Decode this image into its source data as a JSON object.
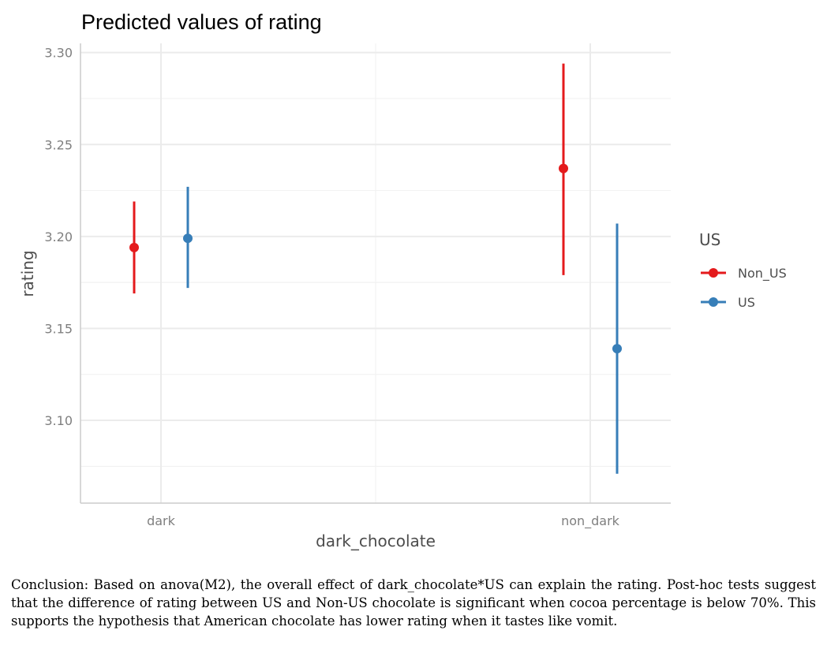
{
  "chart_data": {
    "type": "scatter",
    "title": "Predicted values of rating",
    "xlabel": "dark_chocolate",
    "ylabel": "rating",
    "categories": [
      "dark",
      "non_dark"
    ],
    "ylim": [
      3.055,
      3.305
    ],
    "y_ticks": [
      3.1,
      3.15,
      3.2,
      3.25,
      3.3
    ],
    "y_tick_labels": [
      "3.10",
      "3.15",
      "3.20",
      "3.25",
      "3.30"
    ],
    "grid": true,
    "legend_title": "US",
    "legend_position": "right",
    "series": [
      {
        "name": "Non_US",
        "color": "#e41a1c",
        "values": [
          3.194,
          3.237
        ],
        "ci_low": [
          3.169,
          3.179
        ],
        "ci_high": [
          3.219,
          3.294
        ]
      },
      {
        "name": "US",
        "color": "#377eb8",
        "values": [
          3.199,
          3.139
        ],
        "ci_low": [
          3.172,
          3.071
        ],
        "ci_high": [
          3.227,
          3.207
        ]
      }
    ]
  },
  "conclusion": "Conclusion: Based on anova(M2), the overall effect of dark_chocolate*US can explain the rating. Post-hoc tests suggest that the difference of rating between US and Non-US chocolate is significant when cocoa percentage is below 70%. This supports the hypothesis that American chocolate has lower rating when it tastes like vomit."
}
